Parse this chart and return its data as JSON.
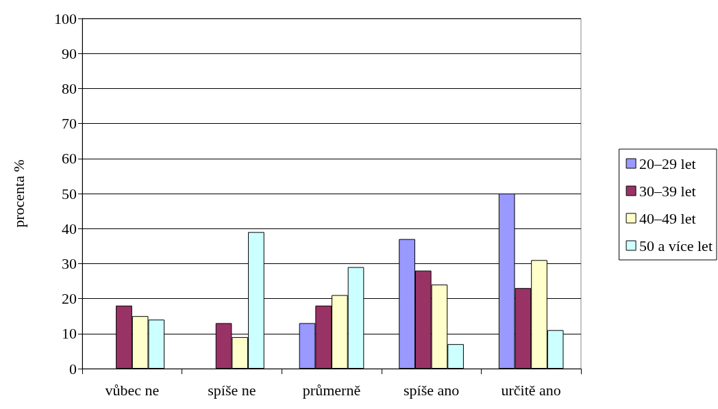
{
  "chart_data": {
    "type": "bar",
    "ylabel": "procenta %",
    "categories": [
      "vůbec ne",
      "spíše ne",
      "průmerně",
      "spíše ano",
      "určitě ano"
    ],
    "series": [
      {
        "name": "20–29 let",
        "color": "#9999ff",
        "values": [
          null,
          null,
          13,
          37,
          50
        ]
      },
      {
        "name": "30–39 let",
        "color": "#993366",
        "values": [
          18,
          13,
          18,
          28,
          23
        ]
      },
      {
        "name": "40–49 let",
        "color": "#ffffcc",
        "values": [
          15,
          9,
          21,
          24,
          31
        ]
      },
      {
        "name": "50 a více let",
        "color": "#ccffff",
        "values": [
          14,
          39,
          29,
          7,
          11
        ]
      }
    ],
    "ylim": [
      0,
      100
    ],
    "yticks": [
      0,
      10,
      20,
      30,
      40,
      50,
      60,
      70,
      80,
      90,
      100
    ],
    "grid": "y",
    "legend": "right"
  }
}
